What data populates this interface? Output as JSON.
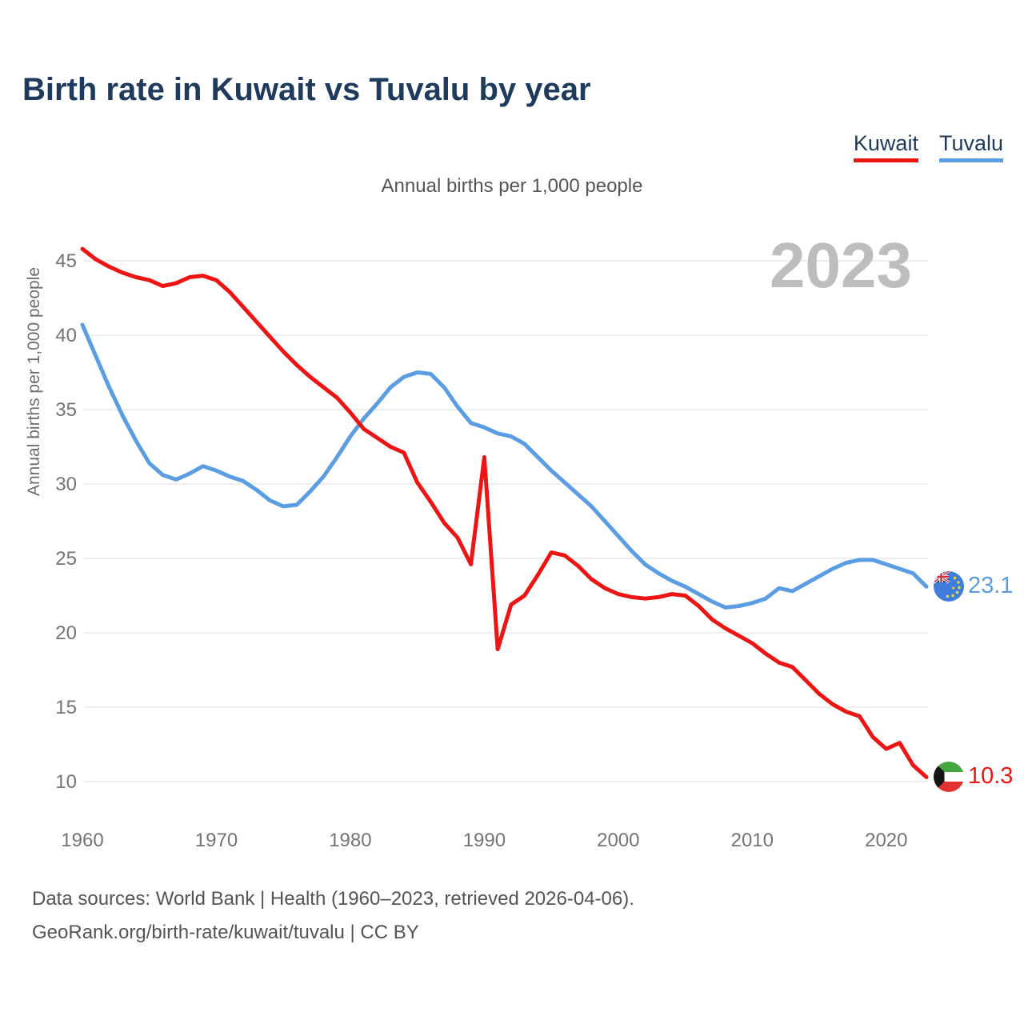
{
  "header": {
    "title": "Birth rate in Kuwait vs Tuvalu by year"
  },
  "legend": {
    "items": [
      {
        "label": "Kuwait",
        "color": "#ef1414"
      },
      {
        "label": "Tuvalu",
        "color": "#5b9de2"
      }
    ]
  },
  "chart_data": {
    "type": "line",
    "title": "Birth rate in Kuwait vs Tuvalu by year",
    "subtitle": "Annual births per 1,000 people",
    "ylabel": "Annual births per 1,000 people",
    "watermark": "2023",
    "x_start": 1960,
    "x_end": 2023,
    "x_ticks": [
      1960,
      1970,
      1980,
      1990,
      2000,
      2010,
      2020
    ],
    "y_ticks": [
      10,
      15,
      20,
      25,
      30,
      35,
      40,
      45
    ],
    "ylim": [
      10,
      46
    ],
    "grid": "horizontal",
    "legend_position": "top-right",
    "grid_color": "#e8e8e8",
    "tick_color": "#747474",
    "series": [
      {
        "name": "Kuwait",
        "color": "#ef1414",
        "end_label": "10.3",
        "values": [
          45.8,
          45.1,
          44.6,
          44.2,
          43.9,
          43.7,
          43.3,
          43.5,
          43.9,
          44.0,
          43.7,
          42.9,
          41.9,
          40.9,
          39.9,
          38.9,
          38.0,
          37.2,
          36.5,
          35.8,
          34.8,
          33.7,
          33.1,
          32.5,
          32.1,
          30.1,
          28.8,
          27.4,
          26.4,
          24.6,
          31.8,
          18.9,
          21.9,
          22.5,
          23.9,
          25.4,
          25.2,
          24.5,
          23.6,
          23.0,
          22.6,
          22.4,
          22.3,
          22.4,
          22.6,
          22.5,
          21.8,
          20.9,
          20.3,
          19.8,
          19.3,
          18.6,
          18.0,
          17.7,
          16.8,
          15.9,
          15.2,
          14.7,
          14.4,
          13.0,
          12.2,
          12.6,
          11.1,
          10.3
        ]
      },
      {
        "name": "Tuvalu",
        "color": "#5b9de2",
        "end_label": "23.1",
        "values": [
          40.7,
          38.6,
          36.5,
          34.6,
          32.9,
          31.4,
          30.6,
          30.3,
          30.7,
          31.2,
          30.9,
          30.5,
          30.2,
          29.6,
          28.9,
          28.5,
          28.6,
          29.5,
          30.5,
          31.8,
          33.2,
          34.4,
          35.4,
          36.5,
          37.2,
          37.5,
          37.4,
          36.5,
          35.2,
          34.1,
          33.8,
          33.4,
          33.2,
          32.7,
          31.8,
          30.9,
          30.1,
          29.3,
          28.5,
          27.5,
          26.5,
          25.5,
          24.6,
          24.0,
          23.5,
          23.1,
          22.6,
          22.1,
          21.7,
          21.8,
          22.0,
          22.3,
          23.0,
          22.8,
          23.3,
          23.8,
          24.3,
          24.7,
          24.9,
          24.9,
          24.6,
          24.3,
          24.0,
          23.1
        ]
      }
    ]
  },
  "footer": {
    "line1": "Data sources: World Bank | Health (1960–2023, retrieved 2026-04-06).",
    "line2": "GeoRank.org/birth-rate/kuwait/tuvalu | CC BY"
  }
}
